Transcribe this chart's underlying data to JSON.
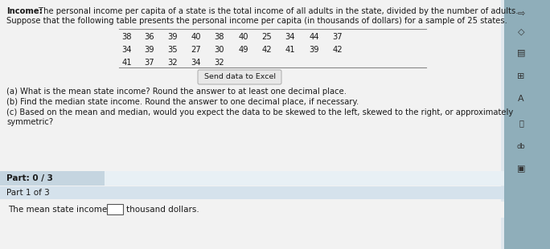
{
  "title_bold": "Income:",
  "title_rest": " The personal income per capita of a state is the total income of all adults in the state, divided by the number of adults.",
  "subtitle": "Suppose that the following table presents the personal income per capita (in thousands of dollars) for a sample of 25 states.",
  "table_rows": [
    [
      38,
      36,
      39,
      40,
      38,
      40,
      25,
      34,
      44,
      37
    ],
    [
      34,
      39,
      35,
      27,
      30,
      49,
      42,
      41,
      39,
      42
    ],
    [
      41,
      37,
      32,
      34,
      32
    ]
  ],
  "button_text": "Send data to Excel",
  "question_a": "(a) What is the mean state income? Round the answer to at least one decimal place.",
  "question_b": "(b) Find the median state income. Round the answer to one decimal place, if necessary.",
  "question_c1": "(c) Based on the mean and median, would you expect the data to be skewed to the left, skewed to the right, or approximately",
  "question_c2": "symmetric?",
  "part_label": "Part: 0 / 3",
  "part1_label": "Part 1 of 3",
  "answer_label": "The mean state income is",
  "answer_suffix": "thousand dollars.",
  "bg_color": "#aec4d0",
  "main_bg": "#f2f2f2",
  "sidebar_bg": "#8faeba",
  "part_row_bg": "#c8d8e4",
  "part_bar_bg": "#c8d8e4",
  "part_progress_bg": "#f2f2f2",
  "part1_row_bg": "#d4e0ea",
  "answer_row_bg": "#f2f2f2",
  "text_color": "#1a1a1a",
  "line_color": "#888888",
  "button_bg": "#e8e8e8",
  "button_border": "#aaaaaa",
  "ans_box_border": "#555555"
}
